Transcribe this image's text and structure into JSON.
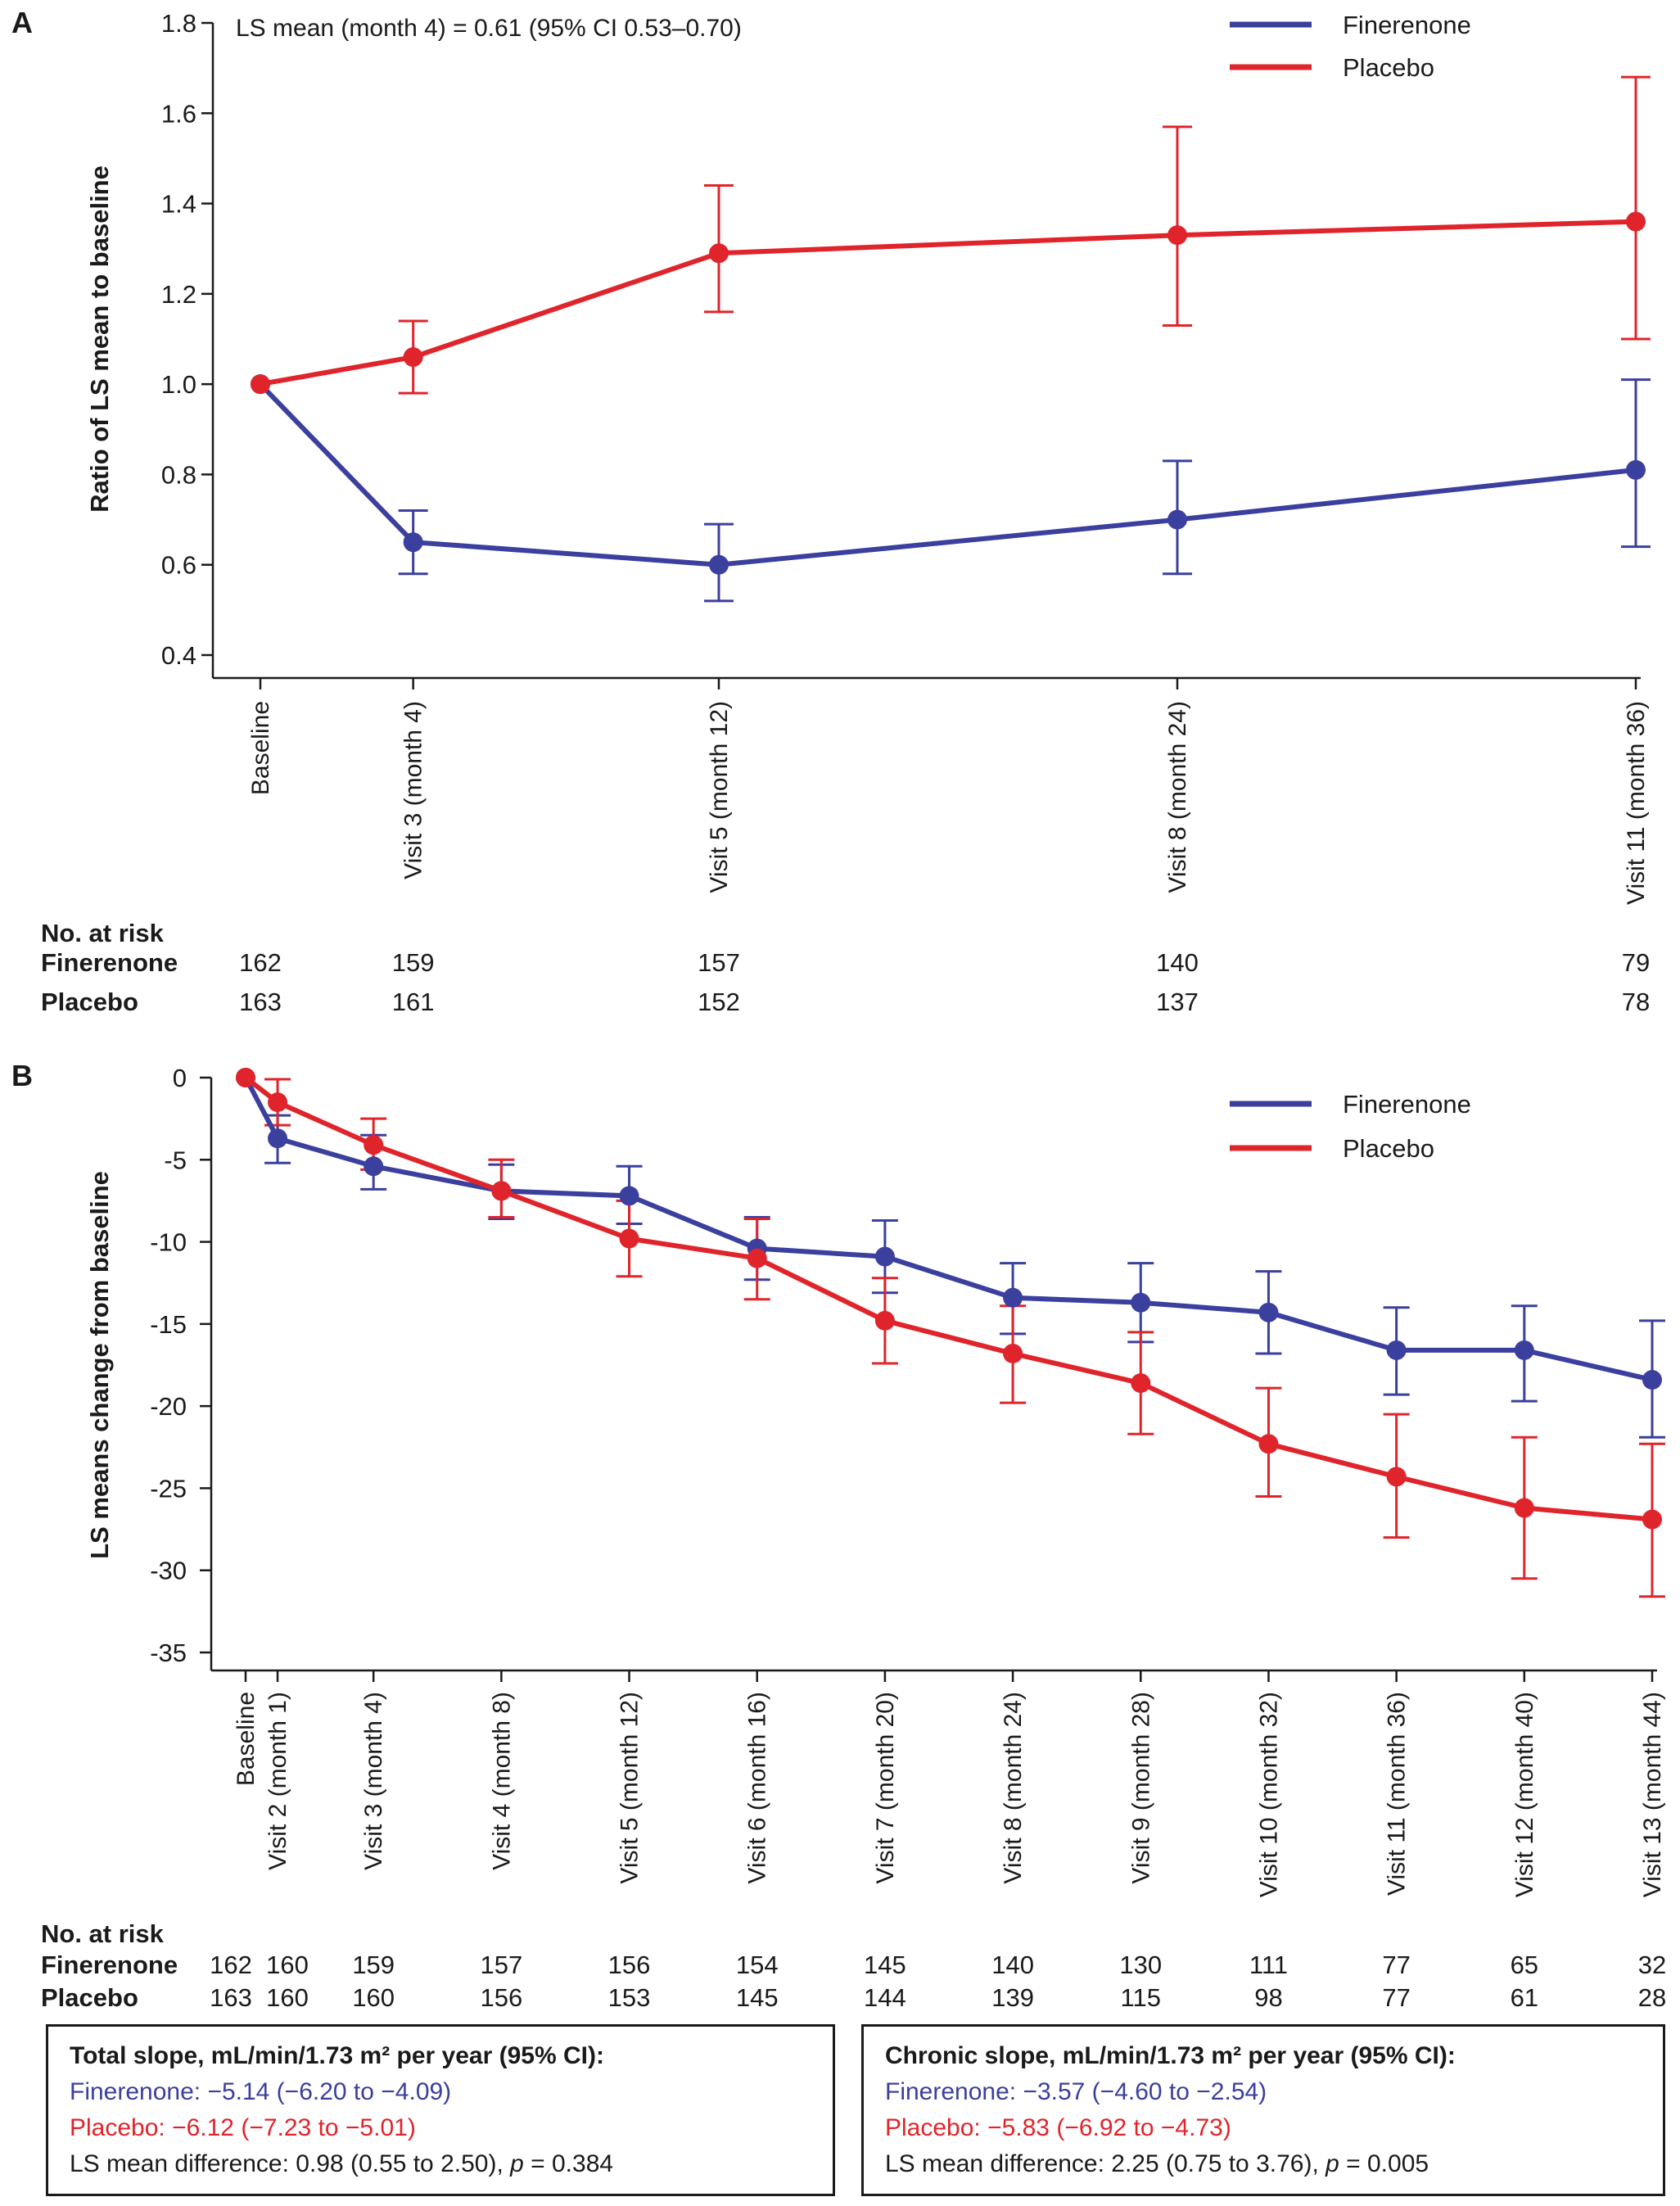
{
  "colors": {
    "finerenone": "#3b3f9e",
    "placebo": "#e0242b",
    "axis": "#1a1a1a"
  },
  "chart_data": [
    {
      "panel_label": "A",
      "type": "line",
      "ylabel": "Ratio of LS mean to baseline",
      "ylim": [
        0.4,
        1.8
      ],
      "yticks": [
        0.4,
        0.6,
        0.8,
        1.0,
        1.2,
        1.4,
        1.6,
        1.8
      ],
      "ytick_labels": [
        "0.4",
        "0.6",
        "0.8",
        "1.0",
        "1.2",
        "1.4",
        "1.6",
        "1.8"
      ],
      "x_months": [
        0,
        4,
        12,
        24,
        36
      ],
      "categories": [
        "Baseline",
        "Visit 3 (month 4)",
        "Visit 5 (month 12)",
        "Visit 8 (month 24)",
        "Visit 11 (month 36)"
      ],
      "annotation": "LS mean (month 4) = 0.61 (95% CI 0.53–0.70)",
      "legend_position": "top-right",
      "series": [
        {
          "name": "Finerenone",
          "color_key": "finerenone",
          "values": [
            1.0,
            0.65,
            0.6,
            0.7,
            0.81
          ],
          "lower": [
            null,
            0.58,
            0.52,
            0.58,
            0.64
          ],
          "upper": [
            null,
            0.72,
            0.69,
            0.83,
            1.01
          ]
        },
        {
          "name": "Placebo",
          "color_key": "placebo",
          "values": [
            1.0,
            1.06,
            1.29,
            1.33,
            1.36
          ],
          "lower": [
            null,
            0.98,
            1.16,
            1.13,
            1.1
          ],
          "upper": [
            null,
            1.14,
            1.44,
            1.57,
            1.68
          ]
        }
      ],
      "risk_table": {
        "title": "No. at risk",
        "rows": [
          {
            "label": "Finerenone",
            "values": [
              "162",
              "159",
              "157",
              "140",
              "79"
            ]
          },
          {
            "label": "Placebo",
            "values": [
              "163",
              "161",
              "152",
              "137",
              "78"
            ]
          }
        ]
      }
    },
    {
      "panel_label": "B",
      "type": "line",
      "ylabel": "LS means change from baseline",
      "ylim": [
        -35,
        0
      ],
      "yticks": [
        0,
        -5,
        -10,
        -15,
        -20,
        -25,
        -30,
        -35
      ],
      "ytick_labels": [
        "0",
        "-5",
        "-10",
        "-15",
        "-20",
        "-25",
        "-30",
        "-35"
      ],
      "x_months": [
        0,
        1,
        4,
        8,
        12,
        16,
        20,
        24,
        28,
        32,
        36,
        40,
        44
      ],
      "categories": [
        "Baseline",
        "Visit 2 (month 1)",
        "Visit 3 (month 4)",
        "Visit 4 (month 8)",
        "Visit 5 (month 12)",
        "Visit 6 (month 16)",
        "Visit 7 (month 20)",
        "Visit 8 (month 24)",
        "Visit 9 (month 28)",
        "Visit 10 (month 32)",
        "Visit 11 (month 36)",
        "Visit 12 (month 40)",
        "Visit 13 (month 44)"
      ],
      "legend_position": "top-right",
      "series": [
        {
          "name": "Finerenone",
          "color_key": "finerenone",
          "values": [
            0,
            -3.7,
            -5.4,
            -6.9,
            -7.2,
            -10.4,
            -10.9,
            -13.4,
            -13.7,
            -14.3,
            -16.6,
            -16.6,
            -18.4
          ],
          "lower": [
            null,
            -5.2,
            -6.8,
            -8.6,
            -8.9,
            -12.3,
            -13.1,
            -15.6,
            -16.1,
            -16.8,
            -19.3,
            -19.7,
            -21.9
          ],
          "upper": [
            null,
            -2.3,
            -3.5,
            -5.3,
            -5.4,
            -8.5,
            -8.7,
            -11.3,
            -11.3,
            -11.8,
            -14.0,
            -13.9,
            -14.8
          ]
        },
        {
          "name": "Placebo",
          "color_key": "placebo",
          "values": [
            0,
            -1.5,
            -4.1,
            -6.9,
            -9.8,
            -11.0,
            -14.8,
            -16.8,
            -18.6,
            -22.3,
            -24.3,
            -26.2,
            -26.9
          ],
          "lower": [
            null,
            -2.9,
            -5.6,
            -8.5,
            -12.1,
            -13.5,
            -17.4,
            -19.8,
            -21.7,
            -25.5,
            -28.0,
            -30.5,
            -31.6
          ],
          "upper": [
            null,
            -0.1,
            -2.5,
            -5.0,
            -7.5,
            -8.6,
            -12.2,
            -13.9,
            -15.5,
            -18.9,
            -20.5,
            -21.9,
            -22.3
          ]
        }
      ],
      "risk_table": {
        "title": "No. at risk",
        "rows": [
          {
            "label": "Finerenone",
            "values": [
              "162",
              "160",
              "159",
              "157",
              "156",
              "154",
              "145",
              "140",
              "130",
              "111",
              "77",
              "65",
              "32"
            ]
          },
          {
            "label": "Placebo",
            "values": [
              "163",
              "160",
              "160",
              "156",
              "153",
              "145",
              "144",
              "139",
              "115",
              "98",
              "77",
              "61",
              "28"
            ]
          }
        ]
      }
    }
  ],
  "boxes": {
    "total": {
      "title": "Total slope, mL/min/1.73 m² per year (95% CI):",
      "finerenone": "Finerenone: −5.14 (−6.20 to −4.09)",
      "placebo": "Placebo: −6.12 (−7.23 to −5.01)",
      "difference_prefix": "LS mean difference: 0.98 (0.55 to 2.50), ",
      "p_symbol": "p",
      "p_value": " = 0.384"
    },
    "chronic": {
      "title": "Chronic slope, mL/min/1.73 m² per year (95% CI):",
      "finerenone": "Finerenone: −3.57 (−4.60 to −2.54)",
      "placebo": "Placebo: −5.83 (−6.92 to −4.73)",
      "difference_prefix": "LS mean difference: 2.25 (0.75 to 3.76), ",
      "p_symbol": "p",
      "p_value": " = 0.005"
    }
  }
}
